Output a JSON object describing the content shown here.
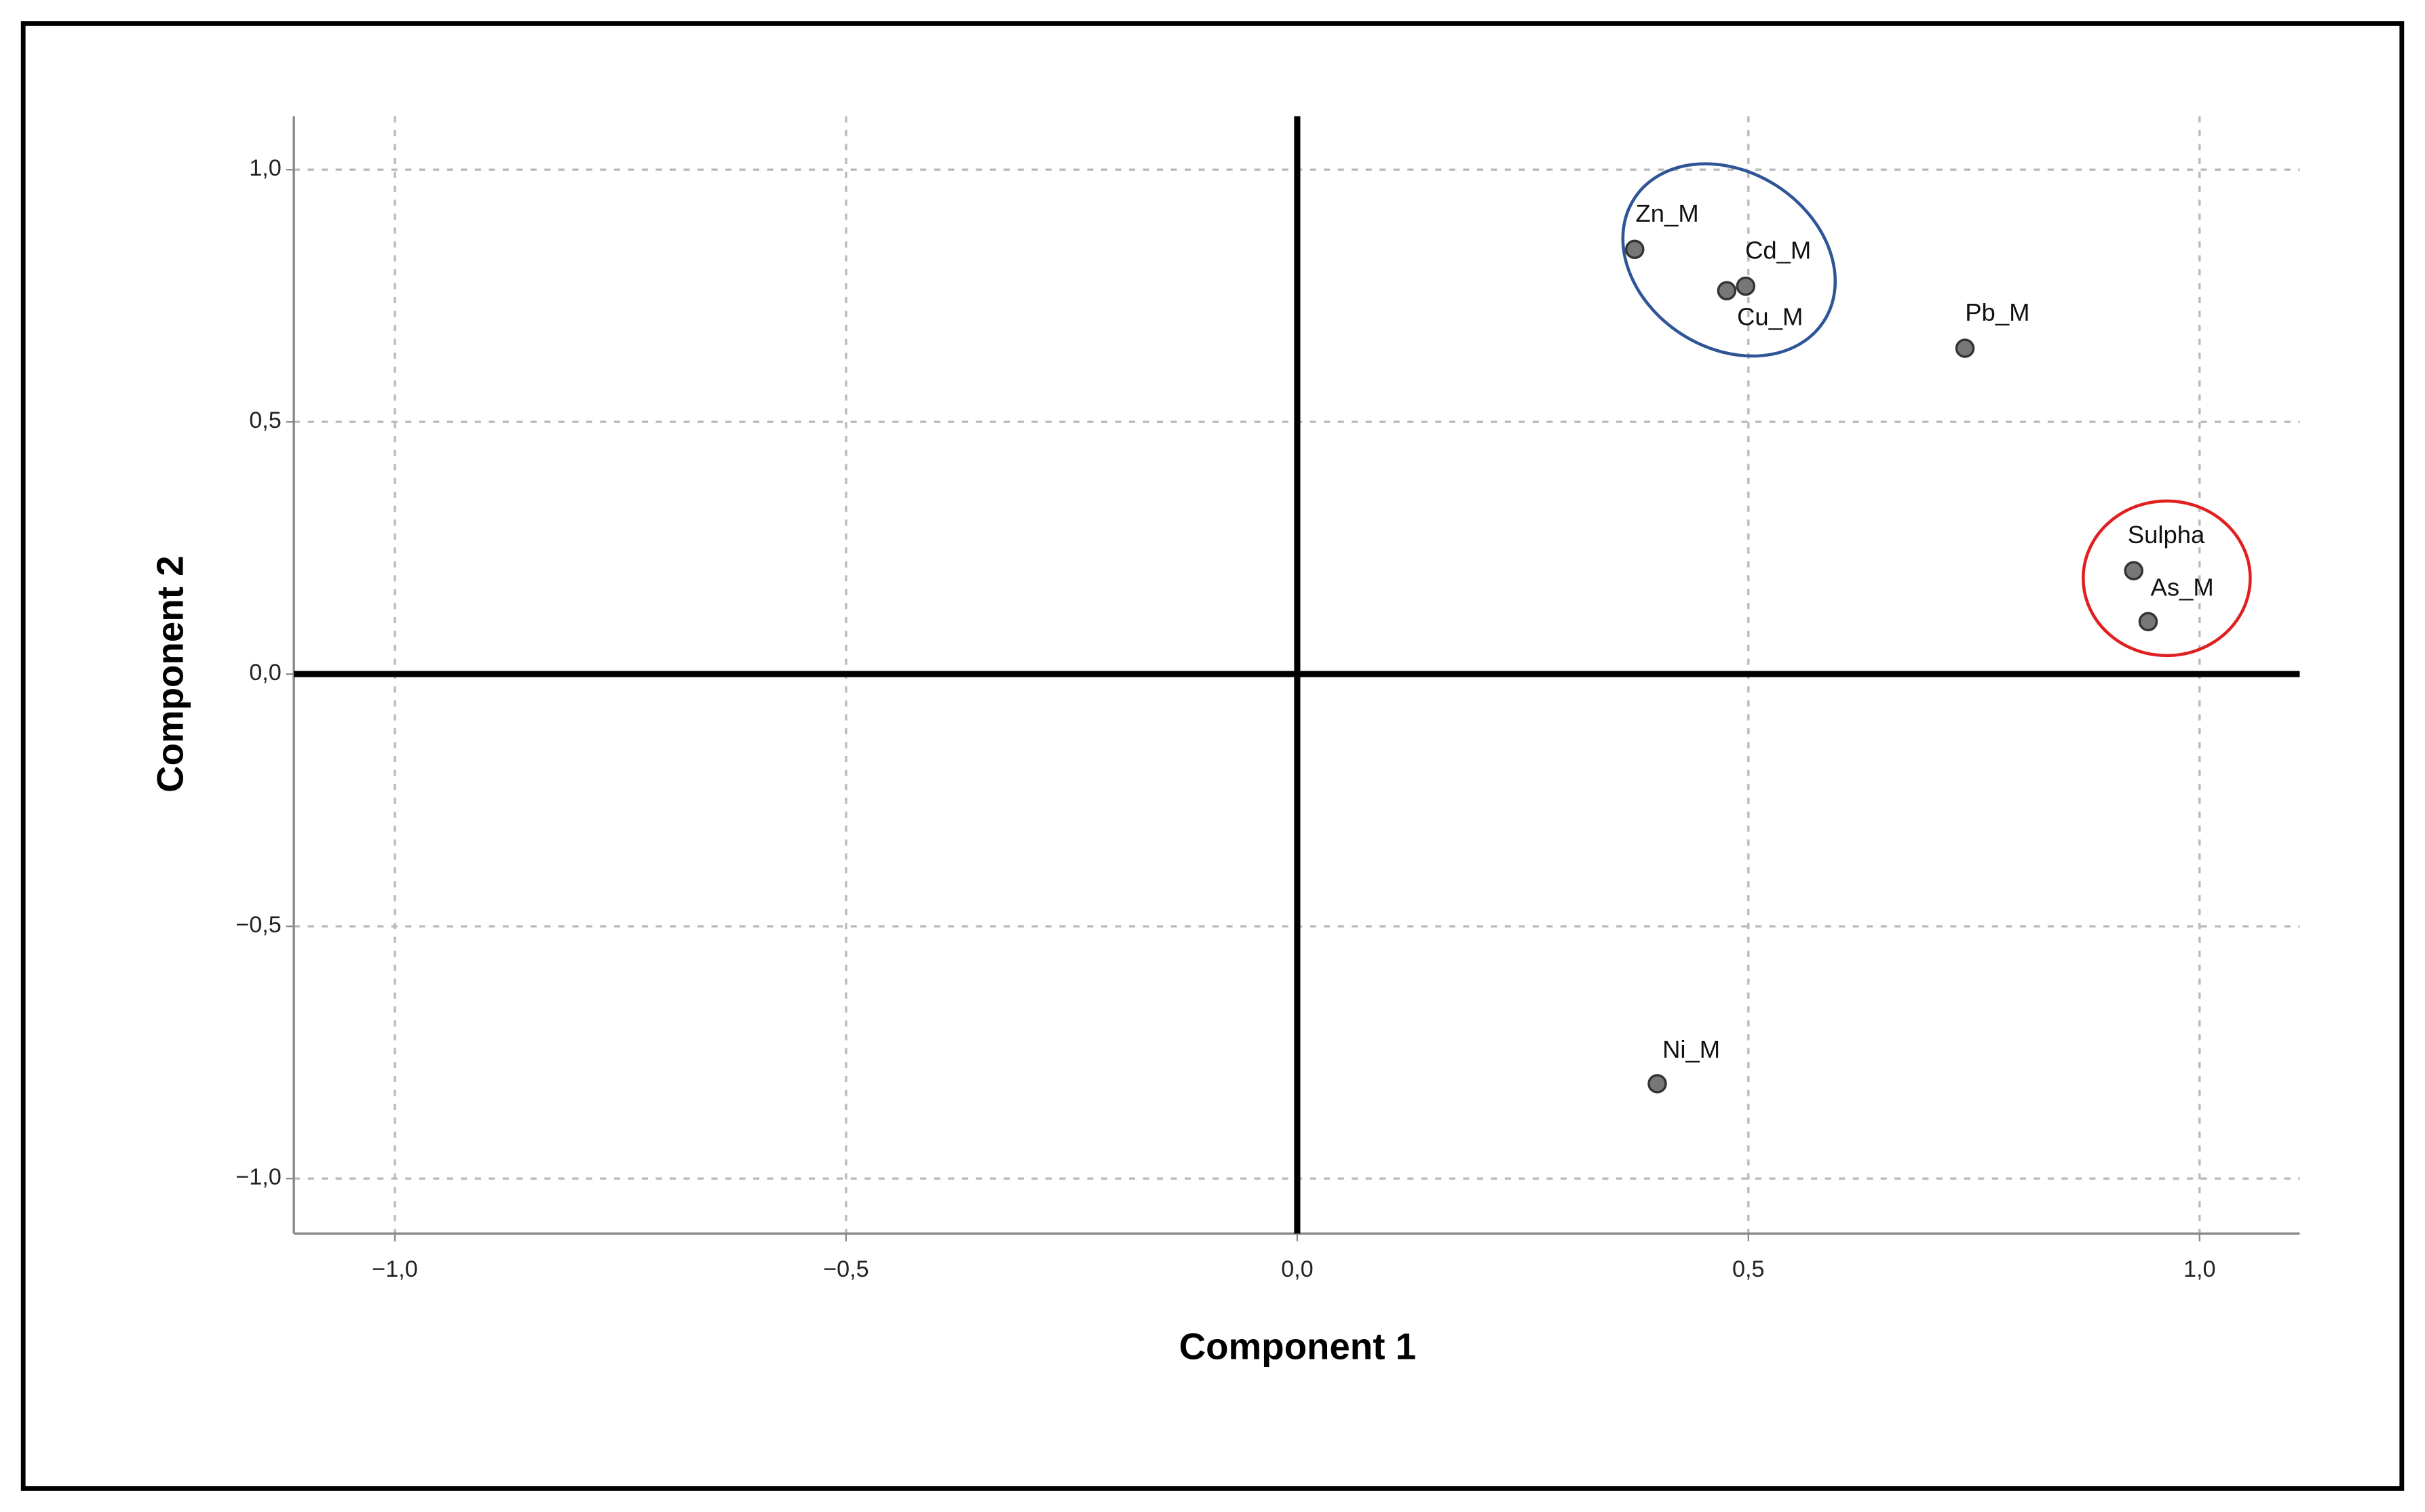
{
  "chart_data": {
    "type": "scatter",
    "x_label": "Component 1",
    "y_label": "Component 2",
    "labels": [
      "Zn_M",
      "Cd_M",
      "Cu_M",
      "Pb_M",
      "Sulpha",
      "As_M",
      "Ni_M"
    ],
    "x": [
      0.374,
      0.497,
      0.476,
      0.74,
      0.927,
      0.943,
      0.399
    ],
    "values": [
      0.842,
      0.769,
      0.76,
      0.646,
      0.205,
      0.104,
      -0.812
    ],
    "color": "#777777",
    "xlim": [
      -1.112,
      1.111
    ],
    "ylim": [
      -1.109,
      1.106
    ],
    "xticks": [
      {
        "value": -1.0,
        "label": "−1,0"
      },
      {
        "value": -0.5,
        "label": "−0,5"
      },
      {
        "value": 0,
        "label": "0,0"
      },
      {
        "value": 0.5,
        "label": "0,5"
      },
      {
        "value": 1.0,
        "label": "1,0"
      }
    ],
    "yticks": [
      {
        "value": -1.0,
        "label": "−1,0"
      },
      {
        "value": -0.5,
        "label": "−0,5"
      },
      {
        "value": 0,
        "label": "0,0"
      },
      {
        "value": 0.5,
        "label": "0,5"
      },
      {
        "value": 1.0,
        "label": "1,0"
      }
    ],
    "grid": true
  }
}
